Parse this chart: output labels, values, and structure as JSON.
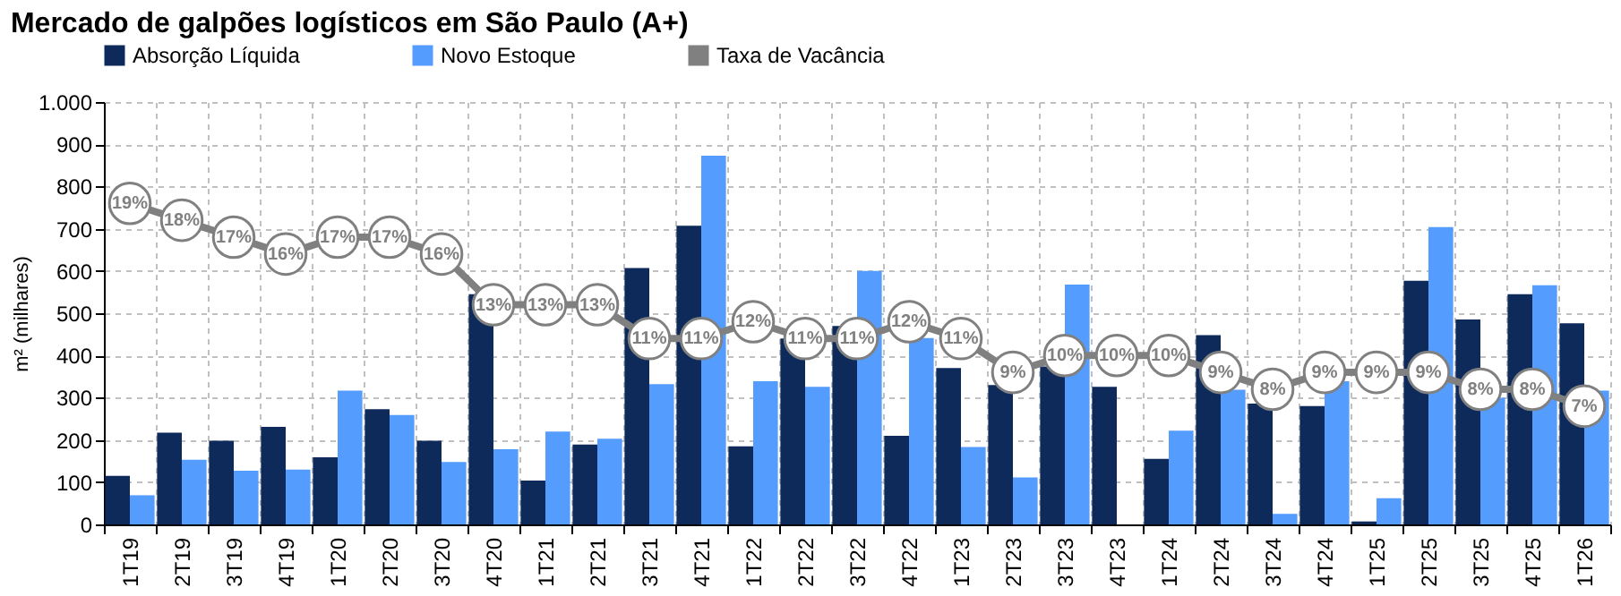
{
  "chart_data": {
    "type": "bar",
    "title": "Mercado de galpões logísticos em São Paulo (A+)",
    "ylabel": "m² (milhares)",
    "categories": [
      "1T19",
      "2T19",
      "3T19",
      "4T19",
      "1T20",
      "2T20",
      "3T20",
      "4T20",
      "1T21",
      "2T21",
      "3T21",
      "4T21",
      "1T22",
      "2T22",
      "3T22",
      "4T22",
      "1T23",
      "2T23",
      "3T23",
      "4T23",
      "1T24",
      "2T24",
      "3T24",
      "4T24",
      "1T25",
      "2T25",
      "3T25",
      "4T25",
      "1T26"
    ],
    "series": [
      {
        "name": "Absorção Líquida",
        "color": "#0d2a5a",
        "values": [
          115,
          217,
          198,
          231,
          159,
          273,
          198,
          545,
          104,
          189,
          607,
          707,
          185,
          440,
          470,
          210,
          370,
          330,
          374,
          326,
          155,
          448,
          286,
          280,
          7,
          577,
          485,
          545,
          476
        ]
      },
      {
        "name": "Novo Estoque",
        "color": "#559cff",
        "values": [
          69,
          153,
          127,
          130,
          317,
          259,
          148,
          178,
          220,
          203,
          332,
          873,
          339,
          326,
          600,
          441,
          183,
          111,
          568,
          null,
          222,
          319,
          25,
          339,
          62,
          704,
          300,
          566,
          317
        ]
      },
      {
        "name": "Taxa de Vacância",
        "type": "line",
        "axis": "y2",
        "color": "#808080",
        "marker": "circle",
        "values": [
          19,
          18,
          17,
          16,
          17,
          17,
          16,
          13,
          13,
          13,
          11,
          11,
          12,
          11,
          11,
          12,
          11,
          9,
          10,
          10,
          10,
          9,
          8,
          9,
          9,
          9,
          8,
          8,
          7
        ],
        "value_labels": [
          "19%",
          "18%",
          "17%",
          "16%",
          "17%",
          "17%",
          "16%",
          "13%",
          "13%",
          "13%",
          "11%",
          "11%",
          "12%",
          "11%",
          "11%",
          "12%",
          "11%",
          "9%",
          "10%",
          "10%",
          "10%",
          "9%",
          "8%",
          "9%",
          "9%",
          "9%",
          "8%",
          "8%",
          "7%"
        ]
      }
    ],
    "ylim": [
      0,
      1000
    ],
    "yticks": [
      0,
      100,
      200,
      300,
      400,
      500,
      600,
      700,
      800,
      900,
      {
        "value": 1000,
        "label": "1.000"
      }
    ],
    "tick_labels": "y",
    "grid": true,
    "legend": "top"
  }
}
